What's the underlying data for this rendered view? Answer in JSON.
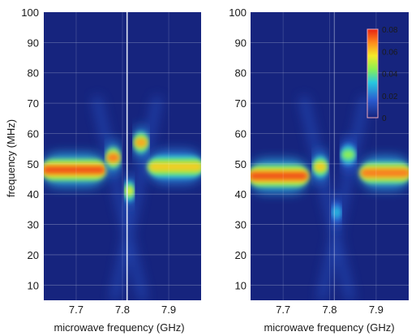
{
  "chart_data": [
    {
      "type": "heatmap",
      "panel": "left",
      "xlabel": "microwave frequency (GHz)",
      "ylabel": "frequency (MHz)",
      "xlim": [
        7.63,
        7.97
      ],
      "ylim": [
        5,
        100
      ],
      "x_ticks": [
        7.7,
        7.8,
        7.9
      ],
      "y_ticks": [
        10,
        20,
        30,
        40,
        50,
        60,
        70,
        80,
        90,
        100
      ],
      "vertical_marker_x": 7.81,
      "grid": true,
      "features": [
        {
          "x_range": [
            7.63,
            7.76
          ],
          "y": 48,
          "level": 0.075
        },
        {
          "x_range": [
            7.77,
            7.79
          ],
          "y": 52,
          "level": 0.07
        },
        {
          "x_range": [
            7.83,
            7.85
          ],
          "y": 57,
          "level": 0.065
        },
        {
          "x_range": [
            7.81,
            7.82
          ],
          "y": 41,
          "level": 0.055
        },
        {
          "x_range": [
            7.86,
            7.97
          ],
          "y": 49,
          "level": 0.06
        }
      ]
    },
    {
      "type": "heatmap",
      "panel": "right",
      "xlabel": "microwave frequency (GHz)",
      "ylabel": "",
      "xlim": [
        7.63,
        7.97
      ],
      "ylim": [
        5,
        100
      ],
      "x_ticks": [
        7.7,
        7.8,
        7.9
      ],
      "y_ticks": [
        10,
        20,
        30,
        40,
        50,
        60,
        70,
        80,
        90,
        100
      ],
      "vertical_marker_x": 7.81,
      "grid": true,
      "features": [
        {
          "x_range": [
            7.63,
            7.75
          ],
          "y": 46,
          "level": 0.075
        },
        {
          "x_range": [
            7.77,
            7.79
          ],
          "y": 49,
          "level": 0.06
        },
        {
          "x_range": [
            7.83,
            7.85
          ],
          "y": 53,
          "level": 0.045
        },
        {
          "x_range": [
            7.81,
            7.82
          ],
          "y": 34,
          "level": 0.03
        },
        {
          "x_range": [
            7.87,
            7.97
          ],
          "y": 47,
          "level": 0.07
        }
      ]
    }
  ],
  "colorbar": {
    "range": [
      0,
      0.08
    ],
    "ticks": [
      {
        "value": 0.08,
        "label": "0.08"
      },
      {
        "value": 0.06,
        "label": "0.06"
      },
      {
        "value": 0.04,
        "label": "0.04"
      },
      {
        "value": 0.02,
        "label": "0.02"
      },
      {
        "value": 0,
        "label": "0"
      }
    ],
    "placement": "top-right of right panel"
  },
  "colors": {
    "background_low": "#16247e",
    "mid_blue": "#2a5cd0",
    "cyan": "#28c8e0",
    "green": "#8af052",
    "yellow": "#f4ea28",
    "orange": "#ff8a1c",
    "red": "#e62214",
    "marker_line": "#e8edf8"
  }
}
